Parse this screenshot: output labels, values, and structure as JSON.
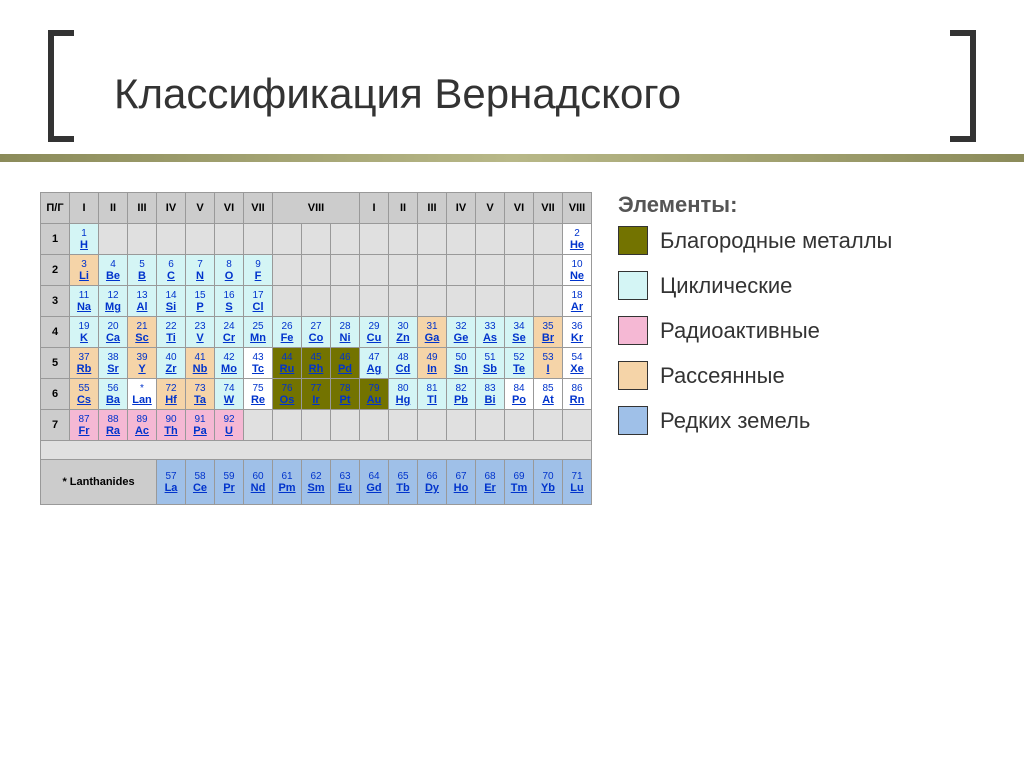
{
  "title": "Классификация Вернадского",
  "colors": {
    "noble": "#737300",
    "cyclic": "#d4f5f5",
    "radioactive": "#f5b8d4",
    "scattered": "#f5d4a8",
    "rare_earth": "#9fc0e8",
    "header_bg": "#cccccc",
    "empty_bg": "#e0e0e0",
    "link": "#0033cc",
    "border": "#999999"
  },
  "legend": {
    "title": "Элементы:",
    "items": [
      {
        "color": "noble",
        "label": "Благородные металлы"
      },
      {
        "color": "cyclic",
        "label": "Циклические"
      },
      {
        "color": "radioactive",
        "label": "Радиоактивные"
      },
      {
        "color": "scattered",
        "label": "Рассеянные"
      },
      {
        "color": "rare_earth",
        "label": "Редких земель"
      }
    ]
  },
  "table": {
    "corner": "П/Г",
    "groups": [
      "I",
      "II",
      "III",
      "IV",
      "V",
      "VI",
      "VII",
      "VIII",
      "",
      "",
      "I",
      "II",
      "III",
      "IV",
      "V",
      "VI",
      "VII",
      "VIII"
    ],
    "group8_span": 3,
    "periods": [
      {
        "num": "1",
        "cells": [
          {
            "n": "1",
            "s": "H",
            "c": "cyc"
          },
          null,
          null,
          null,
          null,
          null,
          null,
          null,
          null,
          null,
          null,
          null,
          null,
          null,
          null,
          null,
          null,
          {
            "n": "2",
            "s": "He",
            "c": ""
          }
        ]
      },
      {
        "num": "2",
        "cells": [
          {
            "n": "3",
            "s": "Li",
            "c": "scat"
          },
          {
            "n": "4",
            "s": "Be",
            "c": "cyc"
          },
          {
            "n": "5",
            "s": "B",
            "c": "cyc"
          },
          {
            "n": "6",
            "s": "C",
            "c": "cyc"
          },
          {
            "n": "7",
            "s": "N",
            "c": "cyc"
          },
          {
            "n": "8",
            "s": "O",
            "c": "cyc"
          },
          {
            "n": "9",
            "s": "F",
            "c": "cyc"
          },
          null,
          null,
          null,
          null,
          null,
          null,
          null,
          null,
          null,
          null,
          {
            "n": "10",
            "s": "Ne",
            "c": ""
          }
        ]
      },
      {
        "num": "3",
        "cells": [
          {
            "n": "11",
            "s": "Na",
            "c": "cyc"
          },
          {
            "n": "12",
            "s": "Mg",
            "c": "cyc"
          },
          {
            "n": "13",
            "s": "Al",
            "c": "cyc"
          },
          {
            "n": "14",
            "s": "Si",
            "c": "cyc"
          },
          {
            "n": "15",
            "s": "P",
            "c": "cyc"
          },
          {
            "n": "16",
            "s": "S",
            "c": "cyc"
          },
          {
            "n": "17",
            "s": "Cl",
            "c": "cyc"
          },
          null,
          null,
          null,
          null,
          null,
          null,
          null,
          null,
          null,
          null,
          {
            "n": "18",
            "s": "Ar",
            "c": ""
          }
        ]
      },
      {
        "num": "4",
        "cells": [
          {
            "n": "19",
            "s": "K",
            "c": "cyc"
          },
          {
            "n": "20",
            "s": "Ca",
            "c": "cyc"
          },
          {
            "n": "21",
            "s": "Sc",
            "c": "scat"
          },
          {
            "n": "22",
            "s": "Ti",
            "c": "cyc"
          },
          {
            "n": "23",
            "s": "V",
            "c": "cyc"
          },
          {
            "n": "24",
            "s": "Cr",
            "c": "cyc"
          },
          {
            "n": "25",
            "s": "Mn",
            "c": "cyc"
          },
          {
            "n": "26",
            "s": "Fe",
            "c": "cyc"
          },
          {
            "n": "27",
            "s": "Co",
            "c": "cyc"
          },
          {
            "n": "28",
            "s": "Ni",
            "c": "cyc"
          },
          {
            "n": "29",
            "s": "Cu",
            "c": "cyc"
          },
          {
            "n": "30",
            "s": "Zn",
            "c": "cyc"
          },
          {
            "n": "31",
            "s": "Ga",
            "c": "scat"
          },
          {
            "n": "32",
            "s": "Ge",
            "c": "cyc"
          },
          {
            "n": "33",
            "s": "As",
            "c": "cyc"
          },
          {
            "n": "34",
            "s": "Se",
            "c": "cyc"
          },
          {
            "n": "35",
            "s": "Br",
            "c": "scat"
          },
          {
            "n": "36",
            "s": "Kr",
            "c": ""
          }
        ]
      },
      {
        "num": "5",
        "cells": [
          {
            "n": "37",
            "s": "Rb",
            "c": "scat"
          },
          {
            "n": "38",
            "s": "Sr",
            "c": "cyc"
          },
          {
            "n": "39",
            "s": "Y",
            "c": "scat"
          },
          {
            "n": "40",
            "s": "Zr",
            "c": "cyc"
          },
          {
            "n": "41",
            "s": "Nb",
            "c": "scat"
          },
          {
            "n": "42",
            "s": "Mo",
            "c": "cyc"
          },
          {
            "n": "43",
            "s": "Tc",
            "c": ""
          },
          {
            "n": "44",
            "s": "Ru",
            "c": "noble"
          },
          {
            "n": "45",
            "s": "Rh",
            "c": "noble"
          },
          {
            "n": "46",
            "s": "Pd",
            "c": "noble"
          },
          {
            "n": "47",
            "s": "Ag",
            "c": "cyc"
          },
          {
            "n": "48",
            "s": "Cd",
            "c": "cyc"
          },
          {
            "n": "49",
            "s": "In",
            "c": "scat"
          },
          {
            "n": "50",
            "s": "Sn",
            "c": "cyc"
          },
          {
            "n": "51",
            "s": "Sb",
            "c": "cyc"
          },
          {
            "n": "52",
            "s": "Te",
            "c": "cyc"
          },
          {
            "n": "53",
            "s": "I",
            "c": "scat"
          },
          {
            "n": "54",
            "s": "Xe",
            "c": ""
          }
        ]
      },
      {
        "num": "6",
        "cells": [
          {
            "n": "55",
            "s": "Cs",
            "c": "scat"
          },
          {
            "n": "56",
            "s": "Ba",
            "c": "cyc"
          },
          {
            "n": "*",
            "s": "Lan",
            "c": ""
          },
          {
            "n": "72",
            "s": "Hf",
            "c": "scat"
          },
          {
            "n": "73",
            "s": "Ta",
            "c": "scat"
          },
          {
            "n": "74",
            "s": "W",
            "c": "cyc"
          },
          {
            "n": "75",
            "s": "Re",
            "c": ""
          },
          {
            "n": "76",
            "s": "Os",
            "c": "noble"
          },
          {
            "n": "77",
            "s": "Ir",
            "c": "noble"
          },
          {
            "n": "78",
            "s": "Pt",
            "c": "noble"
          },
          {
            "n": "79",
            "s": "Au",
            "c": "noble"
          },
          {
            "n": "80",
            "s": "Hg",
            "c": "cyc"
          },
          {
            "n": "81",
            "s": "Tl",
            "c": "cyc"
          },
          {
            "n": "82",
            "s": "Pb",
            "c": "cyc"
          },
          {
            "n": "83",
            "s": "Bi",
            "c": "cyc"
          },
          {
            "n": "84",
            "s": "Po",
            "c": ""
          },
          {
            "n": "85",
            "s": "At",
            "c": ""
          },
          {
            "n": "86",
            "s": "Rn",
            "c": ""
          }
        ]
      },
      {
        "num": "7",
        "cells": [
          {
            "n": "87",
            "s": "Fr",
            "c": "radio"
          },
          {
            "n": "88",
            "s": "Ra",
            "c": "radio"
          },
          {
            "n": "89",
            "s": "Ac",
            "c": "radio"
          },
          {
            "n": "90",
            "s": "Th",
            "c": "radio"
          },
          {
            "n": "91",
            "s": "Pa",
            "c": "radio"
          },
          {
            "n": "92",
            "s": "U",
            "c": "radio"
          },
          null,
          null,
          null,
          null,
          null,
          null,
          null,
          null,
          null,
          null,
          null,
          null
        ]
      }
    ],
    "lanthanides": {
      "label": "* Lanthanides",
      "cells": [
        {
          "n": "57",
          "s": "La",
          "c": "rare"
        },
        {
          "n": "58",
          "s": "Ce",
          "c": "rare"
        },
        {
          "n": "59",
          "s": "Pr",
          "c": "rare"
        },
        {
          "n": "60",
          "s": "Nd",
          "c": "rare"
        },
        {
          "n": "61",
          "s": "Pm",
          "c": "rare"
        },
        {
          "n": "62",
          "s": "Sm",
          "c": "rare"
        },
        {
          "n": "63",
          "s": "Eu",
          "c": "rare"
        },
        {
          "n": "64",
          "s": "Gd",
          "c": "rare"
        },
        {
          "n": "65",
          "s": "Tb",
          "c": "rare"
        },
        {
          "n": "66",
          "s": "Dy",
          "c": "rare"
        },
        {
          "n": "67",
          "s": "Ho",
          "c": "rare"
        },
        {
          "n": "68",
          "s": "Er",
          "c": "rare"
        },
        {
          "n": "69",
          "s": "Tm",
          "c": "rare"
        },
        {
          "n": "70",
          "s": "Yb",
          "c": "rare"
        },
        {
          "n": "71",
          "s": "Lu",
          "c": "rare"
        }
      ]
    }
  }
}
